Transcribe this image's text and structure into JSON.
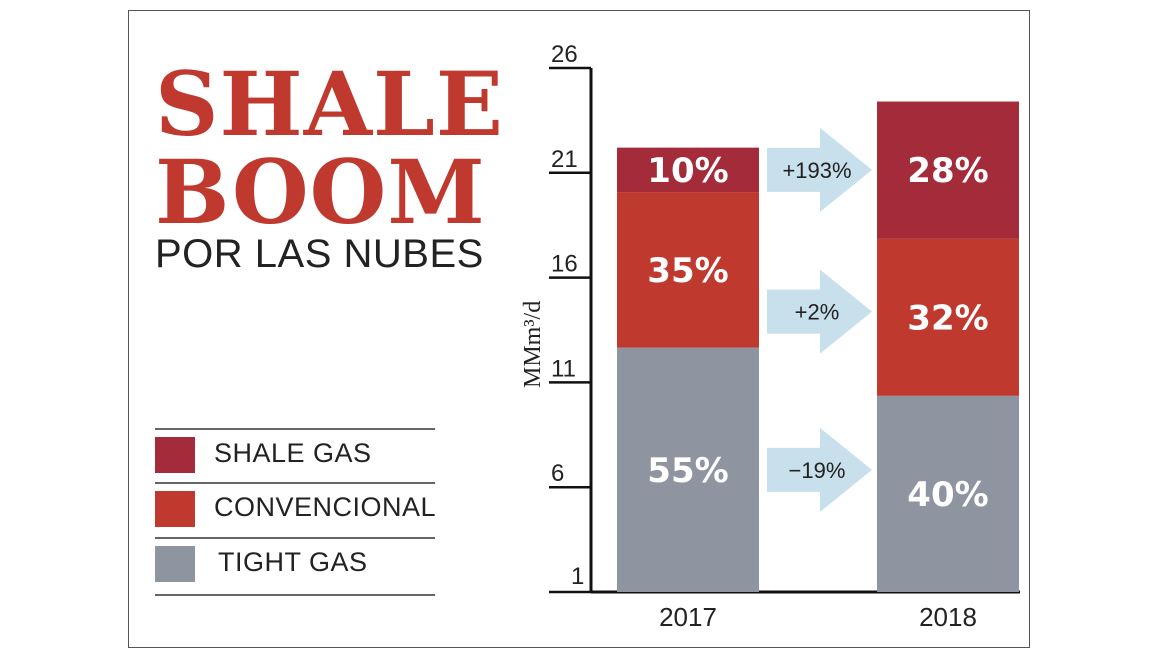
{
  "chart_data": {
    "type": "bar",
    "stacked": true,
    "title": [
      "SHALE",
      "BOOM"
    ],
    "subtitle": "POR LAS NUBES",
    "ylabel": "MMm³/d",
    "ylim": [
      1,
      26
    ],
    "yticks": [
      "26",
      "21",
      "16",
      "11",
      "6",
      "1"
    ],
    "yticks_values": [
      26,
      21,
      16,
      11,
      6,
      1
    ],
    "categories": [
      "2017",
      "2018"
    ],
    "totals": [
      22.2,
      24.4
    ],
    "series": [
      {
        "name": "TIGHT GAS",
        "color": "#8e95a1",
        "shares": [
          55,
          40
        ],
        "labels": [
          "55%",
          "40%"
        ]
      },
      {
        "name": "CONVENCIONAL",
        "color": "#c0392f",
        "shares": [
          35,
          32
        ],
        "labels": [
          "35%",
          "32%"
        ]
      },
      {
        "name": "SHALE GAS",
        "color": "#a32b3a",
        "shares": [
          10,
          28
        ],
        "labels": [
          "10%",
          "28%"
        ]
      }
    ],
    "changes": [
      {
        "series": "SHALE GAS",
        "label": "+193%"
      },
      {
        "series": "CONVENCIONAL",
        "label": "+2%"
      },
      {
        "series": "TIGHT GAS",
        "label": "−19%"
      }
    ],
    "legend": [
      {
        "label": "SHALE GAS",
        "color": "#a32b3a"
      },
      {
        "label": "CONVENCIONAL",
        "color": "#c0392f"
      },
      {
        "label": "TIGHT GAS",
        "color": "#8e95a1"
      }
    ],
    "arrow_color": "#c8dfec",
    "legend_position": "left"
  }
}
